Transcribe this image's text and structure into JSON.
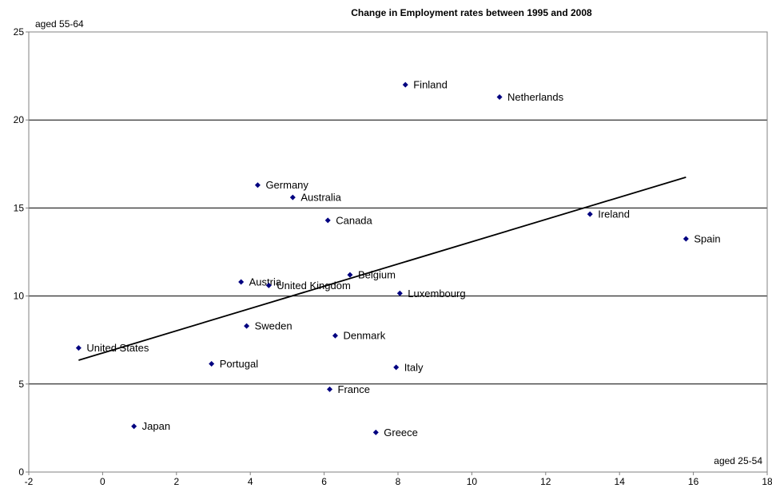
{
  "chart_data": {
    "type": "scatter",
    "title": "Change in Employment rates between 1995 and 2008",
    "xlabel": "aged 25-54",
    "ylabel": "aged 55-64",
    "xlim": [
      -2,
      18
    ],
    "ylim": [
      0,
      25
    ],
    "x_ticks": [
      -2,
      0,
      2,
      4,
      6,
      8,
      10,
      12,
      14,
      16,
      18
    ],
    "y_ticks": [
      0,
      5,
      10,
      15,
      20,
      25
    ],
    "grid": "horizontal",
    "points": [
      {
        "label": "Finland",
        "x": 8.2,
        "y": 22.0
      },
      {
        "label": "Netherlands",
        "x": 10.75,
        "y": 21.3
      },
      {
        "label": "Germany",
        "x": 4.2,
        "y": 16.3
      },
      {
        "label": "Australia",
        "x": 5.15,
        "y": 15.6
      },
      {
        "label": "Canada",
        "x": 6.1,
        "y": 14.3
      },
      {
        "label": "Ireland",
        "x": 13.2,
        "y": 14.65
      },
      {
        "label": "Spain",
        "x": 15.8,
        "y": 13.25
      },
      {
        "label": "Belgium",
        "x": 6.7,
        "y": 11.2
      },
      {
        "label": "Austria",
        "x": 3.75,
        "y": 10.8
      },
      {
        "label": "United Kingdom",
        "x": 4.5,
        "y": 10.6
      },
      {
        "label": "Luxembourg",
        "x": 8.05,
        "y": 10.15
      },
      {
        "label": "Sweden",
        "x": 3.9,
        "y": 8.3
      },
      {
        "label": "Denmark",
        "x": 6.3,
        "y": 7.75
      },
      {
        "label": "United States",
        "x": -0.65,
        "y": 7.05
      },
      {
        "label": "Portugal",
        "x": 2.95,
        "y": 6.15
      },
      {
        "label": "Italy",
        "x": 7.95,
        "y": 5.95
      },
      {
        "label": "France",
        "x": 6.15,
        "y": 4.7
      },
      {
        "label": "Japan",
        "x": 0.85,
        "y": 2.6
      },
      {
        "label": "Greece",
        "x": 7.4,
        "y": 2.25
      }
    ],
    "trendline": {
      "x": [
        -0.65,
        15.8
      ],
      "y": [
        6.35,
        16.75
      ]
    },
    "colors": {
      "marker": "#000080",
      "trendline": "#000000",
      "grid": "#000000"
    }
  }
}
